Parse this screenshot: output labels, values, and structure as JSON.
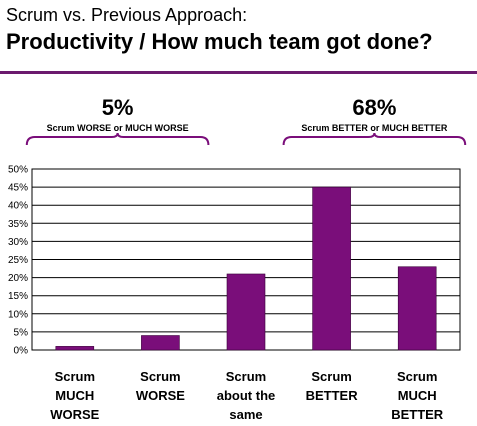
{
  "header": {
    "title": "Scrum vs. Previous Approach:",
    "subtitle": "Productivity / How much team got done?"
  },
  "chart_data": {
    "type": "bar",
    "title": "Productivity / How much team got done?",
    "categories": [
      [
        "Scrum",
        "MUCH",
        "WORSE"
      ],
      [
        "Scrum",
        "WORSE"
      ],
      [
        "Scrum",
        "about the",
        "same"
      ],
      [
        "Scrum",
        "BETTER"
      ],
      [
        "Scrum",
        "MUCH",
        "BETTER"
      ]
    ],
    "values": [
      1,
      4,
      21,
      45,
      23
    ],
    "unit": "%",
    "ylim": [
      0,
      50
    ],
    "yticks": [
      "0%",
      "5%",
      "10%",
      "15%",
      "20%",
      "25%",
      "30%",
      "35%",
      "40%",
      "45%",
      "50%"
    ],
    "grid": true,
    "bar_color": "#7a0e7a",
    "annotations": [
      {
        "pct": "5%",
        "text": "Scrum WORSE or MUCH WORSE",
        "spans": [
          0,
          1
        ]
      },
      {
        "pct": "68%",
        "text": "Scrum BETTER or MUCH BETTER",
        "spans": [
          3,
          4
        ]
      }
    ]
  }
}
